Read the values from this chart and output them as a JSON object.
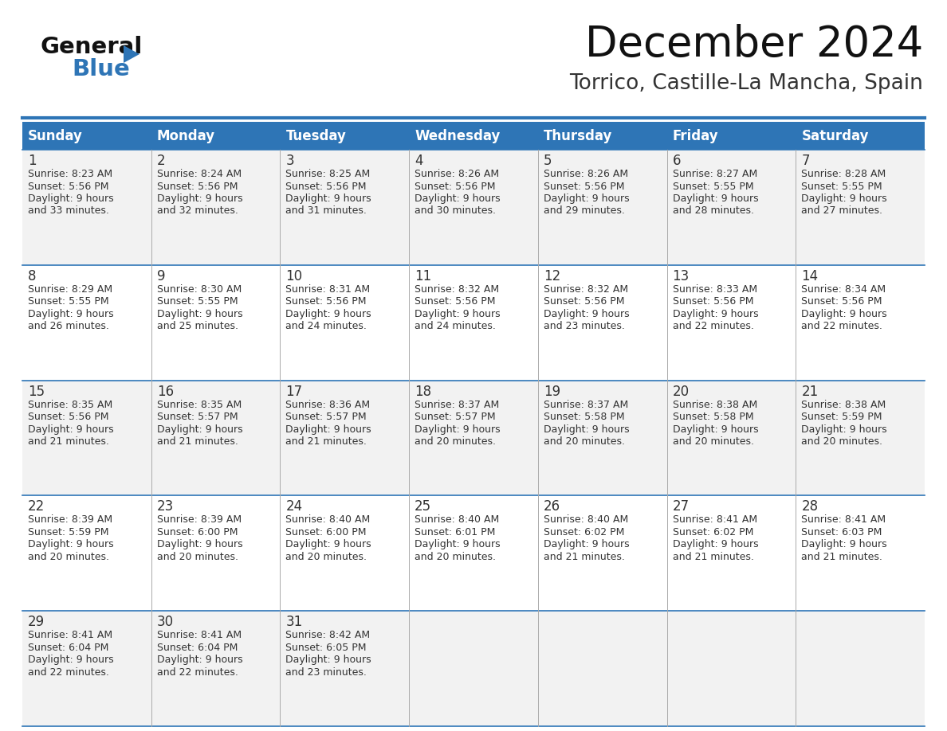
{
  "title": "December 2024",
  "subtitle": "Torrico, Castille-La Mancha, Spain",
  "header_color": "#2E75B6",
  "header_text_color": "#FFFFFF",
  "text_color": "#333333",
  "line_color": "#2E75B6",
  "row_sep_color": "#2E75B6",
  "col_sep_color": "#AAAAAA",
  "row_bg_colors": [
    "#F2F2F2",
    "#FFFFFF",
    "#F2F2F2",
    "#FFFFFF",
    "#F2F2F2"
  ],
  "days_of_week": [
    "Sunday",
    "Monday",
    "Tuesday",
    "Wednesday",
    "Thursday",
    "Friday",
    "Saturday"
  ],
  "calendar": [
    [
      {
        "day": "1",
        "sunrise": "8:23 AM",
        "sunset": "5:56 PM",
        "daylight1": "Daylight: 9 hours",
        "daylight2": "and 33 minutes."
      },
      {
        "day": "2",
        "sunrise": "8:24 AM",
        "sunset": "5:56 PM",
        "daylight1": "Daylight: 9 hours",
        "daylight2": "and 32 minutes."
      },
      {
        "day": "3",
        "sunrise": "8:25 AM",
        "sunset": "5:56 PM",
        "daylight1": "Daylight: 9 hours",
        "daylight2": "and 31 minutes."
      },
      {
        "day": "4",
        "sunrise": "8:26 AM",
        "sunset": "5:56 PM",
        "daylight1": "Daylight: 9 hours",
        "daylight2": "and 30 minutes."
      },
      {
        "day": "5",
        "sunrise": "8:26 AM",
        "sunset": "5:56 PM",
        "daylight1": "Daylight: 9 hours",
        "daylight2": "and 29 minutes."
      },
      {
        "day": "6",
        "sunrise": "8:27 AM",
        "sunset": "5:55 PM",
        "daylight1": "Daylight: 9 hours",
        "daylight2": "and 28 minutes."
      },
      {
        "day": "7",
        "sunrise": "8:28 AM",
        "sunset": "5:55 PM",
        "daylight1": "Daylight: 9 hours",
        "daylight2": "and 27 minutes."
      }
    ],
    [
      {
        "day": "8",
        "sunrise": "8:29 AM",
        "sunset": "5:55 PM",
        "daylight1": "Daylight: 9 hours",
        "daylight2": "and 26 minutes."
      },
      {
        "day": "9",
        "sunrise": "8:30 AM",
        "sunset": "5:55 PM",
        "daylight1": "Daylight: 9 hours",
        "daylight2": "and 25 minutes."
      },
      {
        "day": "10",
        "sunrise": "8:31 AM",
        "sunset": "5:56 PM",
        "daylight1": "Daylight: 9 hours",
        "daylight2": "and 24 minutes."
      },
      {
        "day": "11",
        "sunrise": "8:32 AM",
        "sunset": "5:56 PM",
        "daylight1": "Daylight: 9 hours",
        "daylight2": "and 24 minutes."
      },
      {
        "day": "12",
        "sunrise": "8:32 AM",
        "sunset": "5:56 PM",
        "daylight1": "Daylight: 9 hours",
        "daylight2": "and 23 minutes."
      },
      {
        "day": "13",
        "sunrise": "8:33 AM",
        "sunset": "5:56 PM",
        "daylight1": "Daylight: 9 hours",
        "daylight2": "and 22 minutes."
      },
      {
        "day": "14",
        "sunrise": "8:34 AM",
        "sunset": "5:56 PM",
        "daylight1": "Daylight: 9 hours",
        "daylight2": "and 22 minutes."
      }
    ],
    [
      {
        "day": "15",
        "sunrise": "8:35 AM",
        "sunset": "5:56 PM",
        "daylight1": "Daylight: 9 hours",
        "daylight2": "and 21 minutes."
      },
      {
        "day": "16",
        "sunrise": "8:35 AM",
        "sunset": "5:57 PM",
        "daylight1": "Daylight: 9 hours",
        "daylight2": "and 21 minutes."
      },
      {
        "day": "17",
        "sunrise": "8:36 AM",
        "sunset": "5:57 PM",
        "daylight1": "Daylight: 9 hours",
        "daylight2": "and 21 minutes."
      },
      {
        "day": "18",
        "sunrise": "8:37 AM",
        "sunset": "5:57 PM",
        "daylight1": "Daylight: 9 hours",
        "daylight2": "and 20 minutes."
      },
      {
        "day": "19",
        "sunrise": "8:37 AM",
        "sunset": "5:58 PM",
        "daylight1": "Daylight: 9 hours",
        "daylight2": "and 20 minutes."
      },
      {
        "day": "20",
        "sunrise": "8:38 AM",
        "sunset": "5:58 PM",
        "daylight1": "Daylight: 9 hours",
        "daylight2": "and 20 minutes."
      },
      {
        "day": "21",
        "sunrise": "8:38 AM",
        "sunset": "5:59 PM",
        "daylight1": "Daylight: 9 hours",
        "daylight2": "and 20 minutes."
      }
    ],
    [
      {
        "day": "22",
        "sunrise": "8:39 AM",
        "sunset": "5:59 PM",
        "daylight1": "Daylight: 9 hours",
        "daylight2": "and 20 minutes."
      },
      {
        "day": "23",
        "sunrise": "8:39 AM",
        "sunset": "6:00 PM",
        "daylight1": "Daylight: 9 hours",
        "daylight2": "and 20 minutes."
      },
      {
        "day": "24",
        "sunrise": "8:40 AM",
        "sunset": "6:00 PM",
        "daylight1": "Daylight: 9 hours",
        "daylight2": "and 20 minutes."
      },
      {
        "day": "25",
        "sunrise": "8:40 AM",
        "sunset": "6:01 PM",
        "daylight1": "Daylight: 9 hours",
        "daylight2": "and 20 minutes."
      },
      {
        "day": "26",
        "sunrise": "8:40 AM",
        "sunset": "6:02 PM",
        "daylight1": "Daylight: 9 hours",
        "daylight2": "and 21 minutes."
      },
      {
        "day": "27",
        "sunrise": "8:41 AM",
        "sunset": "6:02 PM",
        "daylight1": "Daylight: 9 hours",
        "daylight2": "and 21 minutes."
      },
      {
        "day": "28",
        "sunrise": "8:41 AM",
        "sunset": "6:03 PM",
        "daylight1": "Daylight: 9 hours",
        "daylight2": "and 21 minutes."
      }
    ],
    [
      {
        "day": "29",
        "sunrise": "8:41 AM",
        "sunset": "6:04 PM",
        "daylight1": "Daylight: 9 hours",
        "daylight2": "and 22 minutes."
      },
      {
        "day": "30",
        "sunrise": "8:41 AM",
        "sunset": "6:04 PM",
        "daylight1": "Daylight: 9 hours",
        "daylight2": "and 22 minutes."
      },
      {
        "day": "31",
        "sunrise": "8:42 AM",
        "sunset": "6:05 PM",
        "daylight1": "Daylight: 9 hours",
        "daylight2": "and 23 minutes."
      },
      null,
      null,
      null,
      null
    ]
  ]
}
